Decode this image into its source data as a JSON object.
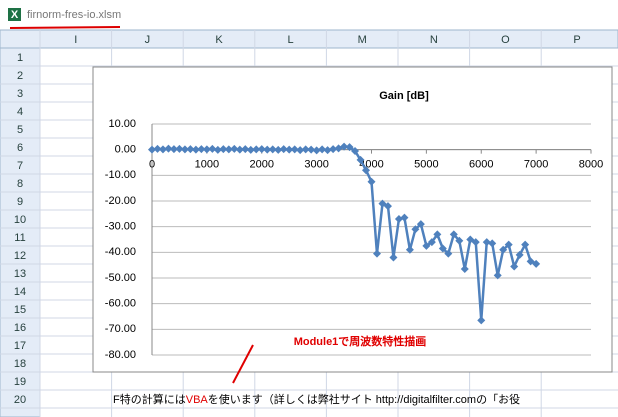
{
  "window": {
    "filename": "firnorm-fres-io.xlsm"
  },
  "sheet": {
    "columns": [
      "I",
      "J",
      "K",
      "L",
      "M",
      "N",
      "O",
      "P"
    ],
    "rows": [
      1,
      2,
      3,
      4,
      5,
      6,
      7,
      8,
      9,
      10,
      11,
      12,
      13,
      14,
      15,
      16,
      17,
      18,
      19,
      20
    ],
    "row20_text": [
      "F特の計算には",
      "VBA",
      "を使います（詳しくは弊社サイト http://digitalfilter.comの「お役"
    ]
  },
  "annotation": "Module1で周波数特性描画",
  "chart_data": {
    "type": "line",
    "title": "Gain [dB]",
    "x": [
      0,
      100,
      200,
      300,
      400,
      500,
      600,
      700,
      800,
      900,
      1000,
      1100,
      1200,
      1300,
      1400,
      1500,
      1600,
      1700,
      1800,
      1900,
      2000,
      2100,
      2200,
      2300,
      2400,
      2500,
      2600,
      2700,
      2800,
      2900,
      3000,
      3100,
      3200,
      3300,
      3400,
      3500,
      3600,
      3700,
      3800,
      3900,
      4000,
      4100,
      4200,
      4300,
      4400,
      4500,
      4600,
      4700,
      4800,
      4900,
      5000,
      5100,
      5200,
      5300,
      5400,
      5500,
      5600,
      5700,
      5800,
      5900,
      6000,
      6100,
      6200,
      6300,
      6400,
      6500,
      6600,
      6700,
      6800,
      6900,
      7000
    ],
    "series": [
      {
        "name": "Gain",
        "color": "#4f81bd",
        "values": [
          0,
          0.3,
          0.1,
          0.4,
          0.2,
          0.3,
          0.1,
          0.2,
          0,
          0.2,
          0.1,
          0.3,
          -0.1,
          0.2,
          0.1,
          0.3,
          0,
          0.2,
          -0.1,
          0.1,
          0.2,
          0,
          0.1,
          -0.1,
          0.2,
          0,
          0.1,
          -0.2,
          0.1,
          0,
          -0.3,
          0.1,
          -0.2,
          0.2,
          0.5,
          1.2,
          1.0,
          -0.5,
          -4,
          -8,
          -12.5,
          -40.5,
          -21,
          -22,
          -42,
          -27,
          -26.5,
          -39,
          -31,
          -29,
          -37.5,
          -36,
          -33,
          -38.5,
          -40.5,
          -33,
          -35.5,
          -46.5,
          -35,
          -36,
          -66.5,
          -36,
          -36.5,
          -49,
          -39,
          -37,
          -45.5,
          -41,
          -37,
          -43.5,
          -44.5
        ]
      }
    ],
    "xlim": [
      0,
      8000
    ],
    "xticks": [
      0,
      1000,
      2000,
      3000,
      4000,
      5000,
      6000,
      7000,
      8000
    ],
    "ylim": [
      -80,
      10
    ],
    "yticks": [
      {
        "value": 10,
        "label": "10.00"
      },
      {
        "value": 0,
        "label": "0.00"
      },
      {
        "value": -10,
        "label": "-10.00"
      },
      {
        "value": -20,
        "label": "-20.00"
      },
      {
        "value": -30,
        "label": "-30.00"
      },
      {
        "value": -40,
        "label": "-40.00"
      },
      {
        "value": -50,
        "label": "-50.00"
      },
      {
        "value": -60,
        "label": "-60.00"
      },
      {
        "value": -70,
        "label": "-70.00"
      },
      {
        "value": -80,
        "label": "-80.00"
      }
    ],
    "grid": true
  }
}
